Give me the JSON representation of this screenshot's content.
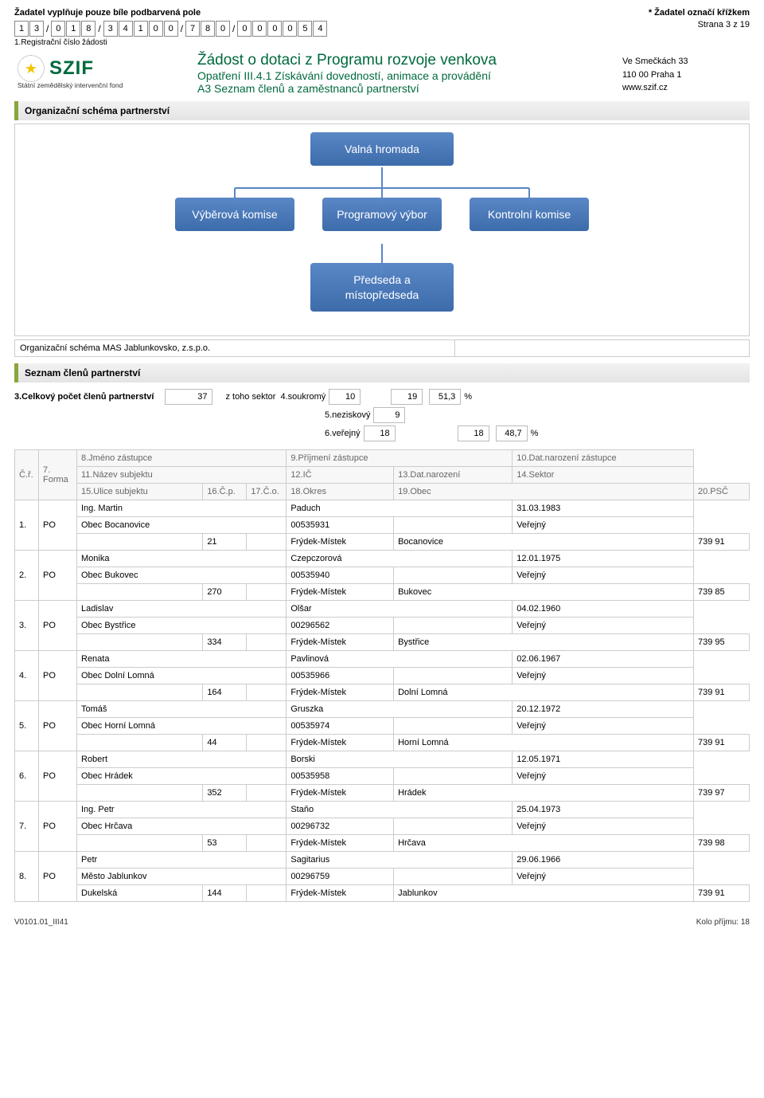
{
  "top": {
    "instruction": "Žadatel vyplňuje pouze bíle podbarvená pole",
    "asterisk_note": "* Žadatel označí křížkem",
    "page_label": "Strana 3 z 19",
    "reg_digits": [
      "1",
      "3",
      "0",
      "1",
      "8",
      "3",
      "4",
      "1",
      "0",
      "0",
      "7",
      "8",
      "0",
      "0",
      "0",
      "0",
      "0",
      "5",
      "4"
    ],
    "reg_label": "1.Registrační číslo žádosti"
  },
  "header": {
    "logo_text": "SZIF",
    "logo_sub": "Státní zemědělský intervenční fond",
    "title": "Žádost o dotaci z Programu rozvoje venkova",
    "subtitle1": "Opatření III.4.1 Získávání dovedností, animace a provádění",
    "subtitle2": "A3 Seznam členů a zaměstnanců partnerství",
    "addr1": "Ve Smečkách 33",
    "addr2": "110 00 Praha 1",
    "addr3": "www.szif.cz"
  },
  "sections": {
    "schema_title": "Organizační schéma partnerství",
    "list_title": "Seznam členů partnerství"
  },
  "org_chart": {
    "nodes": {
      "top": "Valná hromada",
      "left": "Výběrová komise",
      "mid": "Programový výbor",
      "right": "Kontrolní komise",
      "bottom": "Předseda a místopředseda"
    },
    "node_color": "#4a77b4",
    "line_color": "#5a87c6",
    "caption": "Organizační schéma MAS Jablunkovsko, z.s.p.o."
  },
  "stats": {
    "total_label": "3.Celkový počet členů partnerství",
    "total": "37",
    "ztoho": "z toho sektor",
    "s4": "4.soukromý",
    "v4": "10",
    "s5": "5.neziskový",
    "v5": "9",
    "sum45": "19",
    "pct45": "51,3",
    "s6": "6.veřejný",
    "v6": "18",
    "pct6": "48,7",
    "pct_sign": "%"
  },
  "table_headers": {
    "cr": "Č.ř.",
    "forma": "7. Forma",
    "h8": "8.Jméno zástupce",
    "h9": "9.Příjmení zástupce",
    "h10": "10.Dat.narození zástupce",
    "h11": "11.Název subjektu",
    "h12": "12.IČ",
    "h13": "13.Dat.narození",
    "h14": "14.Sektor",
    "h15": "15.Ulice subjektu",
    "h16": "16.Č.p.",
    "h17": "17.Č.o.",
    "h18": "18.Okres",
    "h19": "19.Obec",
    "h20": "20.PSČ"
  },
  "members": [
    {
      "n": "1.",
      "forma": "PO",
      "jm": "Ing. Martin",
      "pr": "Paduch",
      "dob": "31.03.1983",
      "subj": "Obec Bocanovice",
      "ic": "00535931",
      "dn": "",
      "sek": "Veřejný",
      "ul": "",
      "cp": "21",
      "co": "",
      "ok": "Frýdek-Místek",
      "ob": "Bocanovice",
      "psc": "739 91"
    },
    {
      "n": "2.",
      "forma": "PO",
      "jm": "Monika",
      "pr": "Czepczorová",
      "dob": "12.01.1975",
      "subj": "Obec Bukovec",
      "ic": "00535940",
      "dn": "",
      "sek": "Veřejný",
      "ul": "",
      "cp": "270",
      "co": "",
      "ok": "Frýdek-Místek",
      "ob": "Bukovec",
      "psc": "739 85"
    },
    {
      "n": "3.",
      "forma": "PO",
      "jm": "Ladislav",
      "pr": "Olšar",
      "dob": "04.02.1960",
      "subj": "Obec Bystřice",
      "ic": "00296562",
      "dn": "",
      "sek": "Veřejný",
      "ul": "",
      "cp": "334",
      "co": "",
      "ok": "Frýdek-Místek",
      "ob": "Bystřice",
      "psc": "739 95"
    },
    {
      "n": "4.",
      "forma": "PO",
      "jm": "Renata",
      "pr": "Pavlinová",
      "dob": "02.06.1967",
      "subj": "Obec Dolní Lomná",
      "ic": "00535966",
      "dn": "",
      "sek": "Veřejný",
      "ul": "",
      "cp": "164",
      "co": "",
      "ok": "Frýdek-Místek",
      "ob": "Dolní Lomná",
      "psc": "739 91"
    },
    {
      "n": "5.",
      "forma": "PO",
      "jm": "Tomáš",
      "pr": "Gruszka",
      "dob": "20.12.1972",
      "subj": "Obec Horní Lomná",
      "ic": "00535974",
      "dn": "",
      "sek": "Veřejný",
      "ul": "",
      "cp": "44",
      "co": "",
      "ok": "Frýdek-Místek",
      "ob": "Horní Lomná",
      "psc": "739 91"
    },
    {
      "n": "6.",
      "forma": "PO",
      "jm": "Robert",
      "pr": "Borski",
      "dob": "12.05.1971",
      "subj": "Obec Hrádek",
      "ic": "00535958",
      "dn": "",
      "sek": "Veřejný",
      "ul": "",
      "cp": "352",
      "co": "",
      "ok": "Frýdek-Místek",
      "ob": "Hrádek",
      "psc": "739 97"
    },
    {
      "n": "7.",
      "forma": "PO",
      "jm": "Ing. Petr",
      "pr": "Staňo",
      "dob": "25.04.1973",
      "subj": "Obec Hrčava",
      "ic": "00296732",
      "dn": "",
      "sek": "Veřejný",
      "ul": "",
      "cp": "53",
      "co": "",
      "ok": "Frýdek-Místek",
      "ob": "Hrčava",
      "psc": "739 98"
    },
    {
      "n": "8.",
      "forma": "PO",
      "jm": "Petr",
      "pr": "Sagitarius",
      "dob": "29.06.1966",
      "subj": "Město Jablunkov",
      "ic": "00296759",
      "dn": "",
      "sek": "Veřejný",
      "ul": "Dukelská",
      "cp": "144",
      "co": "",
      "ok": "Frýdek-Místek",
      "ob": "Jablunkov",
      "psc": "739 91"
    }
  ],
  "footer": {
    "left": "V0101.01_III41",
    "right": "Kolo příjmu: 18"
  }
}
